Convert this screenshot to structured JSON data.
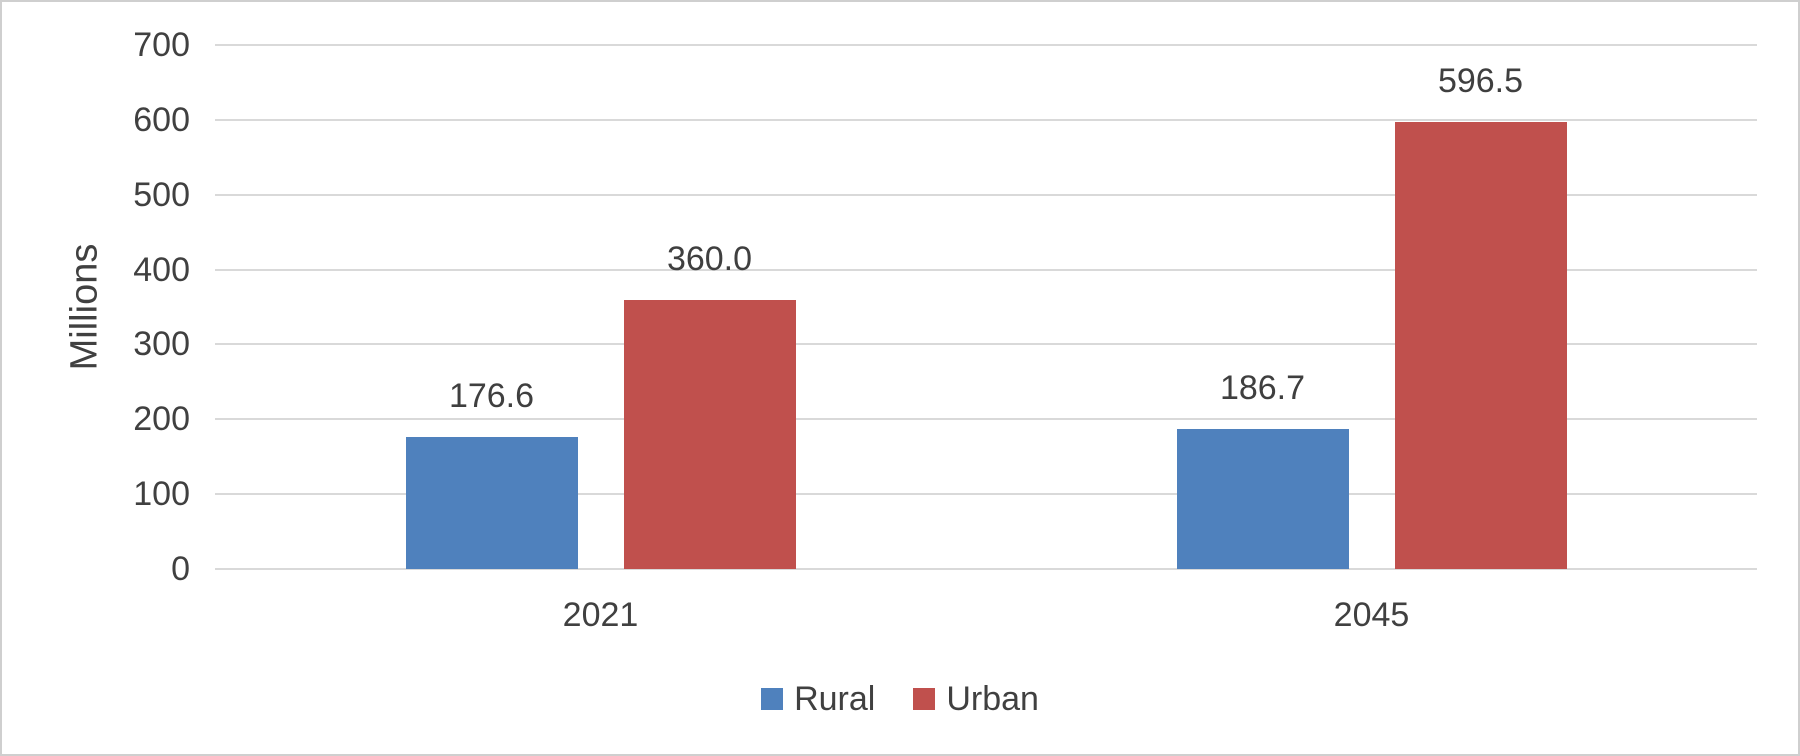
{
  "chart_data": {
    "type": "bar",
    "title": "",
    "categories": [
      "2021",
      "2045"
    ],
    "series": [
      {
        "name": "Rural",
        "color": "#4F81BD",
        "values": [
          176.6,
          186.7
        ],
        "labels": [
          "176.6",
          "186.7"
        ]
      },
      {
        "name": "Urban",
        "color": "#C0504D",
        "values": [
          360.0,
          596.5
        ],
        "labels": [
          "360.0",
          "596.5"
        ]
      }
    ],
    "xlabel": "",
    "ylabel": "Millions",
    "ylim": [
      0,
      700
    ],
    "yticks": [
      0,
      100,
      200,
      300,
      400,
      500,
      600,
      700
    ],
    "grid": true,
    "legend_position": "bottom",
    "colors": {
      "gridline": "#d9d9d9",
      "text": "#404040",
      "frame": "#cfcfcf",
      "background": "#ffffff"
    }
  }
}
